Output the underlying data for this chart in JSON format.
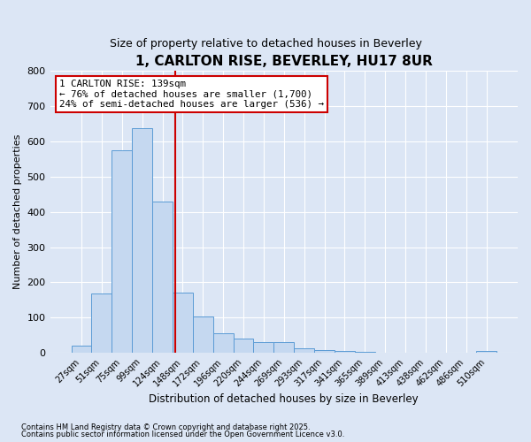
{
  "title": "1, CARLTON RISE, BEVERLEY, HU17 8UR",
  "subtitle": "Size of property relative to detached houses in Beverley",
  "xlabel": "Distribution of detached houses by size in Beverley",
  "ylabel": "Number of detached properties",
  "bar_values": [
    20,
    168,
    575,
    638,
    430,
    170,
    103,
    55,
    40,
    30,
    30,
    14,
    8,
    5,
    3,
    0,
    0,
    0,
    0,
    0,
    5
  ],
  "bin_labels": [
    "27sqm",
    "51sqm",
    "75sqm",
    "99sqm",
    "124sqm",
    "148sqm",
    "172sqm",
    "196sqm",
    "220sqm",
    "244sqm",
    "269sqm",
    "293sqm",
    "317sqm",
    "341sqm",
    "365sqm",
    "389sqm",
    "413sqm",
    "438sqm",
    "462sqm",
    "486sqm",
    "510sqm"
  ],
  "bar_color": "#c5d8f0",
  "bar_edge_color": "#5b9bd5",
  "background_color": "#dce6f5",
  "grid_color": "#ffffff",
  "vline_color": "#cc0000",
  "annotation_line1": "1 CARLTON RISE: 139sqm",
  "annotation_line2": "← 76% of detached houses are smaller (1,700)",
  "annotation_line3": "24% of semi-detached houses are larger (536) →",
  "annotation_box_color": "#cc0000",
  "ylim": [
    0,
    800
  ],
  "yticks": [
    0,
    100,
    200,
    300,
    400,
    500,
    600,
    700,
    800
  ],
  "footnote1": "Contains HM Land Registry data © Crown copyright and database right 2025.",
  "footnote2": "Contains public sector information licensed under the Open Government Licence v3.0."
}
